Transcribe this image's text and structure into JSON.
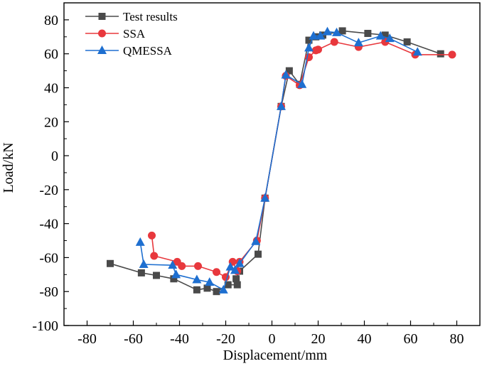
{
  "chart_data": {
    "type": "line",
    "xlabel": "Displacement/mm",
    "ylabel": "Load/kN",
    "xlim": [
      -90,
      90
    ],
    "ylim": [
      -100,
      90
    ],
    "x_ticks": [
      -80,
      -60,
      -40,
      -20,
      0,
      20,
      40,
      60,
      80
    ],
    "y_ticks": [
      -100,
      -80,
      -60,
      -40,
      -20,
      0,
      20,
      40,
      60,
      80
    ],
    "x_tick_labels": [
      "-80",
      "-60",
      "-40",
      "-20",
      "0",
      "20",
      "40",
      "60",
      "80"
    ],
    "y_tick_labels": [
      "-100",
      "-80",
      "-60",
      "-40",
      "-20",
      "0",
      "20",
      "40",
      "60",
      "80"
    ],
    "grid": false,
    "legend_position": "top-left",
    "series": [
      {
        "name": "Test results",
        "color": "#4a4a4a",
        "marker": "square",
        "points": [
          [
            -70,
            -63.5
          ],
          [
            -56.5,
            -69
          ],
          [
            -50,
            -70.5
          ],
          [
            -42.5,
            -72.5
          ],
          [
            -32.5,
            -79
          ],
          [
            -28,
            -78
          ],
          [
            -24,
            -80
          ],
          [
            -19,
            -76
          ],
          [
            -15,
            -76
          ],
          [
            -15.5,
            -72.5
          ],
          [
            -14,
            -68
          ],
          [
            -6,
            -58
          ],
          [
            -3,
            -25
          ],
          [
            4,
            29
          ],
          [
            7.5,
            50
          ],
          [
            12,
            42
          ],
          [
            16,
            68
          ],
          [
            19,
            70
          ],
          [
            22,
            71
          ],
          [
            30.5,
            73.5
          ],
          [
            41.5,
            72
          ],
          [
            49,
            71
          ],
          [
            58.5,
            67
          ],
          [
            73,
            60
          ]
        ]
      },
      {
        "name": "SSA",
        "color": "#e8383d",
        "marker": "circle",
        "points": [
          [
            -52,
            -47
          ],
          [
            -51,
            -59
          ],
          [
            -41,
            -62.5
          ],
          [
            -39,
            -65
          ],
          [
            -32,
            -65
          ],
          [
            -24,
            -68.5
          ],
          [
            -20,
            -71.5
          ],
          [
            -17,
            -62.5
          ],
          [
            -15,
            -68
          ],
          [
            -14,
            -62.5
          ],
          [
            -6.5,
            -50
          ],
          [
            -3,
            -25
          ],
          [
            4,
            29
          ],
          [
            6,
            47
          ],
          [
            12,
            41.5
          ],
          [
            16,
            58
          ],
          [
            19,
            62
          ],
          [
            20,
            62.5
          ],
          [
            27,
            67
          ],
          [
            37.5,
            64
          ],
          [
            49,
            67
          ],
          [
            62,
            59.5
          ],
          [
            78,
            59.5
          ]
        ]
      },
      {
        "name": "QMESSA",
        "color": "#1e6fd0",
        "marker": "triangle",
        "points": [
          [
            -57,
            -51
          ],
          [
            -55.5,
            -64
          ],
          [
            -43,
            -64.5
          ],
          [
            -41.5,
            -70
          ],
          [
            -32.5,
            -73
          ],
          [
            -27,
            -74.5
          ],
          [
            -21,
            -79
          ],
          [
            -18,
            -65.5
          ],
          [
            -16,
            -67.5
          ],
          [
            -14,
            -63.5
          ],
          [
            -7,
            -50.5
          ],
          [
            -3,
            -25
          ],
          [
            4,
            29
          ],
          [
            6,
            47.5
          ],
          [
            13,
            42
          ],
          [
            16,
            63.5
          ],
          [
            18,
            70.5
          ],
          [
            21,
            70.5
          ],
          [
            24,
            73
          ],
          [
            28,
            72.5
          ],
          [
            37.5,
            66.5
          ],
          [
            47,
            70.5
          ],
          [
            51,
            69
          ],
          [
            63,
            61
          ]
        ]
      }
    ]
  }
}
